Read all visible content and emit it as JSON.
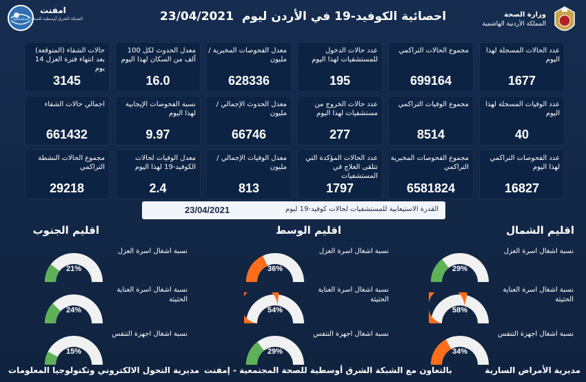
{
  "header": {
    "title": "احصائية الكوفيد-19 في الأردن ليوم",
    "date": "23/04/2021",
    "ministry_name": "وزارة الصحة",
    "ministry_sub": "المملكة الأردنية الهاشمية",
    "emphnet_name": "امفنت",
    "emphnet_sub": "الشبكة الشرق أوسطية للصحة المجتمعية"
  },
  "cards": [
    {
      "label": "عدد الحالات المسجلة لهذا اليوم",
      "value": "1677"
    },
    {
      "label": "مجموع الحالات التراكمي",
      "value": "699164"
    },
    {
      "label": "عدد حالات الدخول للمستشفيات لهذا اليوم",
      "value": "195"
    },
    {
      "label": "معدل الفحوصات المخبرية /مليون",
      "value": "628336"
    },
    {
      "label": "معدل الحدوث لكل 100 ألف من السكان لهذا اليوم",
      "value": "16.0"
    },
    {
      "label": "حالات الشفاء (المتوقعة) بعد انتهاء فترة العزل 14 يوم",
      "value": "3145"
    },
    {
      "label": "عدد الوفيات المسجلة لهذا اليوم",
      "value": "40"
    },
    {
      "label": "مجموع الوفيات التراكمي",
      "value": "8514"
    },
    {
      "label": "عدد حالات الخروج من مستشفيات لهذا اليوم",
      "value": "277"
    },
    {
      "label": "معدل الحدوث الإجمالي /مليون",
      "value": "66746"
    },
    {
      "label": "نسبة الفحوصات الإيجابية لهذا اليوم",
      "value": "9.97"
    },
    {
      "label": "اجمالي حالات الشفاء",
      "value": "661432"
    },
    {
      "label": "عدد الفحوصات التراكمي لهذا اليوم",
      "value": "16827"
    },
    {
      "label": "مجموع الفحوصات المخبرية التراكمي",
      "value": "6581824"
    },
    {
      "label": "عدد الحالات المؤكدة التي تتلقى العلاج في المستشفيات",
      "value": "1797"
    },
    {
      "label": "معدل الوفيات الإجمالي /مليون",
      "value": "813"
    },
    {
      "label": "معدل الوفيات لحالات الكوفيد-19 لهذا اليوم",
      "value": "2.4"
    },
    {
      "label": "مجموع الحالات النشطة التراكمي",
      "value": "29218"
    }
  ],
  "capacity": {
    "label": "القدرة الاستيعابية للمستشفيات لحالات كوفيد-19 ليوم",
    "date": "23/04/2021"
  },
  "metric_labels": {
    "isolation": "نسبة اشغال اسرة العزل",
    "icu_line1": "نسبة اشغال اسرة العناية",
    "icu_line2": "الحثيثة",
    "vent": "نسبة اشغال اجهزة التنفس"
  },
  "regions": [
    {
      "name": "اقليم الشمال",
      "isolation": 29,
      "icu": 58,
      "vent": 34,
      "isolation_text": "29%",
      "icu_text": "58%",
      "vent_text": "34%"
    },
    {
      "name": "اقليم الوسط",
      "isolation": 36,
      "icu": 54,
      "vent": 29,
      "isolation_text": "36%",
      "icu_text": "54%",
      "vent_text": "29%"
    },
    {
      "name": "اقليم الجنوب",
      "isolation": 21,
      "icu": 24,
      "vent": 15,
      "isolation_text": "21%",
      "icu_text": "24%",
      "vent_text": "15%"
    }
  ],
  "colors": {
    "green": "#5fb158",
    "orange": "#ff6d1a",
    "track": "#f1f1f1"
  },
  "footer": {
    "right": "مديرية الأمراض السارية",
    "center": "بالتعاون مع الشبكة الشرق أوسطية للصحة المجتمعية - إمفنت",
    "left": "مديرية التحول الالكتروني وتكنولوجيا المعلومات"
  }
}
